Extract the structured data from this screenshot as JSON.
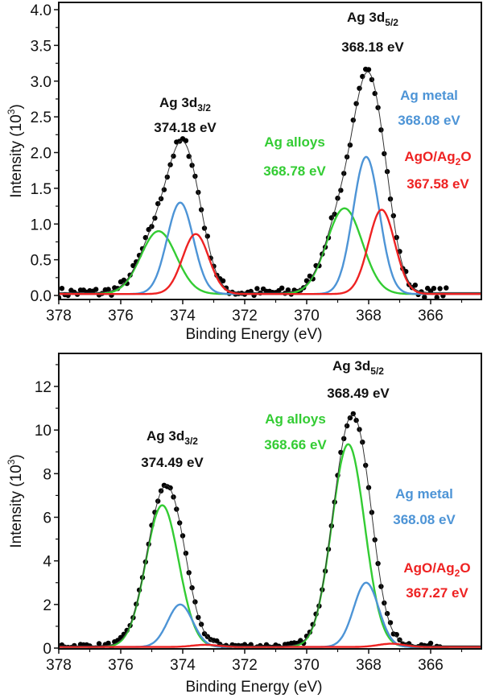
{
  "chart_data": [
    {
      "type": "line",
      "panel": "top",
      "xlabel": "Binding Energy (eV)",
      "ylabel": "Intensity (10^3)",
      "ylabel_parts": {
        "main": "Intensity (10",
        "sup": "3",
        "end": ")"
      },
      "xlim": [
        378,
        364.4
      ],
      "ylim": [
        -0.03,
        4.05
      ],
      "x_reversed": true,
      "x_ticks": [
        378,
        376,
        374,
        372,
        370,
        368,
        366
      ],
      "x_tick_labels": [
        "378",
        "376",
        "374",
        "372",
        "370",
        "368",
        "366"
      ],
      "y_ticks": [
        0.0,
        0.5,
        1.0,
        1.5,
        2.0,
        2.5,
        3.0,
        3.5,
        4.0
      ],
      "y_tick_labels": [
        "0.0",
        "0.5",
        "1.0",
        "1.5",
        "2.0",
        "2.5",
        "3.0",
        "3.5",
        "4.0"
      ],
      "grid": false,
      "background": 0.04,
      "series": [
        {
          "name": "Ag alloys",
          "color": "#33cc33",
          "peaks": [
            {
              "center": 374.78,
              "height": 0.88,
              "fwhm": 1.35
            },
            {
              "center": 368.78,
              "height": 1.2,
              "fwhm": 1.35
            }
          ]
        },
        {
          "name": "Ag metal",
          "color": "#4d94d6",
          "peaks": [
            {
              "center": 374.08,
              "height": 1.28,
              "fwhm": 1.0
            },
            {
              "center": 368.08,
              "height": 1.92,
              "fwhm": 1.0
            }
          ]
        },
        {
          "name": "AgO/Ag2O",
          "color": "#ee2222",
          "peaks": [
            {
              "center": 373.58,
              "height": 0.84,
              "fwhm": 1.0
            },
            {
              "center": 367.58,
              "height": 1.18,
              "fwhm": 1.0
            }
          ]
        },
        {
          "name": "Envelope",
          "color": "#333333",
          "kind": "sum"
        },
        {
          "name": "Experimental",
          "color": "#000000",
          "kind": "scatter",
          "noise": 0.07
        }
      ],
      "annotations": [
        {
          "id": "ag3d32",
          "line1": "Ag 3d",
          "sub": "3/2",
          "line2": "374.18 eV",
          "color": "#111111"
        },
        {
          "id": "ag3d52",
          "line1": "Ag 3d",
          "sub": "5/2",
          "line2": "368.18 eV",
          "color": "#111111"
        },
        {
          "id": "alloys",
          "line1": "Ag alloys",
          "line2": "368.78 eV",
          "color": "#33cc33"
        },
        {
          "id": "metal",
          "line1": "Ag metal",
          "line2": "368.08 eV",
          "color": "#4d94d6"
        },
        {
          "id": "oxide",
          "line1": "AgO/Ag",
          "sub": "2",
          "line1_end": "O",
          "line2": "367.58 eV",
          "color": "#ee2222"
        }
      ]
    },
    {
      "type": "line",
      "panel": "bottom",
      "xlabel": "Binding Energy (eV)",
      "ylabel": "Intensity (10^3)",
      "ylabel_parts": {
        "main": "Intensity (10",
        "sup": "3",
        "end": ")"
      },
      "xlim": [
        378,
        364.4
      ],
      "ylim": [
        -0.1,
        13.4
      ],
      "x_reversed": true,
      "x_ticks": [
        378,
        376,
        374,
        372,
        370,
        368,
        366
      ],
      "x_tick_labels": [
        "378",
        "376",
        "374",
        "372",
        "370",
        "368",
        "366"
      ],
      "y_ticks": [
        0,
        2,
        4,
        6,
        8,
        10,
        12
      ],
      "y_tick_labels": [
        "0",
        "2",
        "4",
        "6",
        "8",
        "10",
        "12"
      ],
      "grid": false,
      "background": 0.1,
      "series": [
        {
          "name": "Ag alloys",
          "color": "#33cc33",
          "peaks": [
            {
              "center": 374.66,
              "height": 6.5,
              "fwhm": 1.25
            },
            {
              "center": 368.66,
              "height": 9.3,
              "fwhm": 1.25
            }
          ]
        },
        {
          "name": "Ag metal",
          "color": "#4d94d6",
          "peaks": [
            {
              "center": 374.08,
              "height": 1.95,
              "fwhm": 0.95
            },
            {
              "center": 368.08,
              "height": 2.95,
              "fwhm": 0.95
            }
          ]
        },
        {
          "name": "AgO/Ag2O",
          "color": "#ee2222",
          "peaks": [
            {
              "center": 373.27,
              "height": 0.1,
              "fwhm": 1.0
            },
            {
              "center": 367.27,
              "height": 0.15,
              "fwhm": 1.0
            }
          ]
        },
        {
          "name": "Envelope",
          "color": "#333333",
          "kind": "sum"
        },
        {
          "name": "Experimental",
          "color": "#000000",
          "kind": "scatter",
          "noise": 0.08
        }
      ],
      "annotations": [
        {
          "id": "ag3d32",
          "line1": "Ag 3d",
          "sub": "3/2",
          "line2": "374.49 eV",
          "color": "#111111"
        },
        {
          "id": "ag3d52",
          "line1": "Ag 3d",
          "sub": "5/2",
          "line2": "368.49 eV",
          "color": "#111111"
        },
        {
          "id": "alloys",
          "line1": "Ag alloys",
          "line2": "368.66 eV",
          "color": "#33cc33"
        },
        {
          "id": "metal",
          "line1": "Ag metal",
          "line2": "368.08 eV",
          "color": "#4d94d6"
        },
        {
          "id": "oxide",
          "line1": "AgO/Ag",
          "sub": "2",
          "line1_end": "O",
          "line2": "367.27 eV",
          "color": "#ee2222"
        }
      ]
    }
  ]
}
